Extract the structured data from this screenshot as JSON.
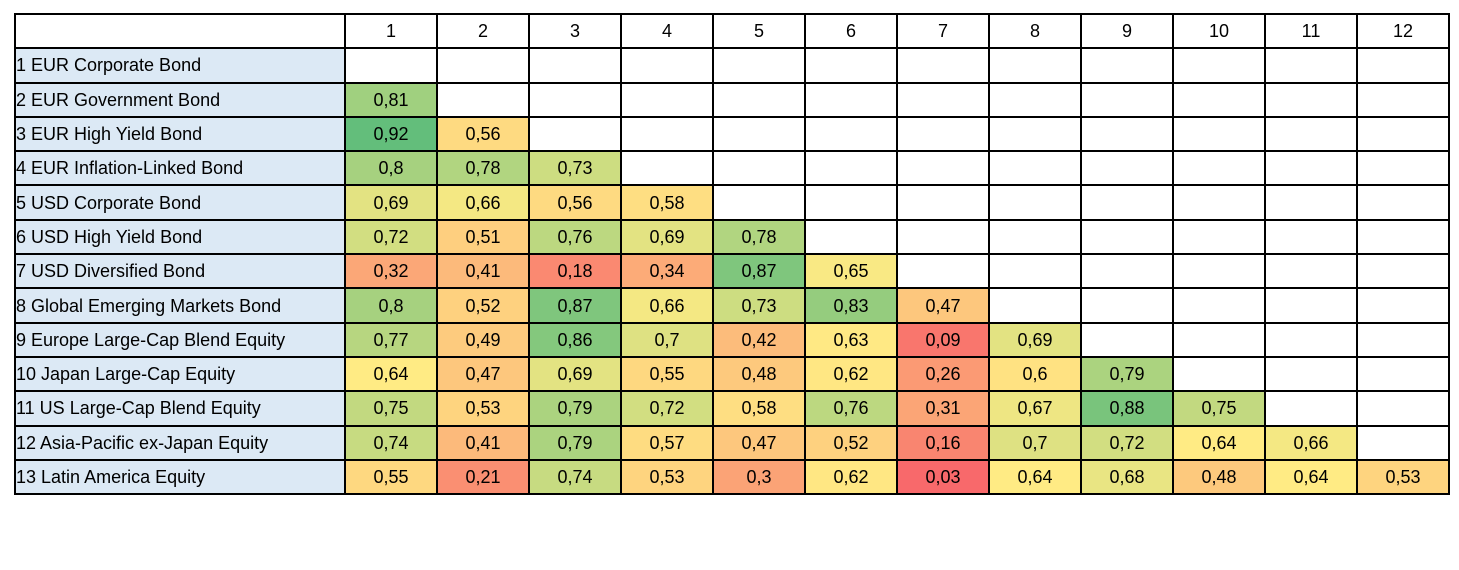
{
  "chart_data": {
    "type": "heatmap",
    "columns": [
      "1",
      "2",
      "3",
      "4",
      "5",
      "6",
      "7",
      "8",
      "9",
      "10",
      "11",
      "12"
    ],
    "rows": [
      {
        "label": "1 EUR Corporate Bond",
        "values": []
      },
      {
        "label": "2 EUR Government Bond",
        "values": [
          "0,81"
        ]
      },
      {
        "label": "3 EUR High Yield Bond",
        "values": [
          "0,92",
          "0,56"
        ]
      },
      {
        "label": "4 EUR Inflation-Linked Bond",
        "values": [
          "0,8",
          "0,78",
          "0,73"
        ]
      },
      {
        "label": "5 USD Corporate Bond",
        "values": [
          "0,69",
          "0,66",
          "0,56",
          "0,58"
        ]
      },
      {
        "label": "6 USD High Yield Bond",
        "values": [
          "0,72",
          "0,51",
          "0,76",
          "0,69",
          "0,78"
        ]
      },
      {
        "label": "7 USD Diversified Bond",
        "values": [
          "0,32",
          "0,41",
          "0,18",
          "0,34",
          "0,87",
          "0,65"
        ]
      },
      {
        "label": "8 Global Emerging Markets Bond",
        "values": [
          "0,8",
          "0,52",
          "0,87",
          "0,66",
          "0,73",
          "0,83",
          "0,47"
        ]
      },
      {
        "label": "9 Europe Large-Cap Blend Equity",
        "values": [
          "0,77",
          "0,49",
          "0,86",
          "0,7",
          "0,42",
          "0,63",
          "0,09",
          "0,69"
        ]
      },
      {
        "label": "10 Japan Large-Cap Equity",
        "values": [
          "0,64",
          "0,47",
          "0,69",
          "0,55",
          "0,48",
          "0,62",
          "0,26",
          "0,6",
          "0,79"
        ]
      },
      {
        "label": "11 US Large-Cap Blend Equity",
        "values": [
          "0,75",
          "0,53",
          "0,79",
          "0,72",
          "0,58",
          "0,76",
          "0,31",
          "0,67",
          "0,88",
          "0,75"
        ]
      },
      {
        "label": "12 Asia-Pacific ex-Japan Equity",
        "values": [
          "0,74",
          "0,41",
          "0,79",
          "0,57",
          "0,47",
          "0,52",
          "0,16",
          "0,7",
          "0,72",
          "0,64",
          "0,66"
        ]
      },
      {
        "label": "13 Latin America Equity",
        "values": [
          "0,55",
          "0,21",
          "0,74",
          "0,53",
          "0,3",
          "0,62",
          "0,03",
          "0,64",
          "0,68",
          "0,48",
          "0,64",
          "0,53"
        ]
      }
    ],
    "color_scale": {
      "low": "#f8696b",
      "mid": "#ffeb84",
      "high": "#63be7b"
    },
    "row_label_fill": "#dce9f5"
  }
}
